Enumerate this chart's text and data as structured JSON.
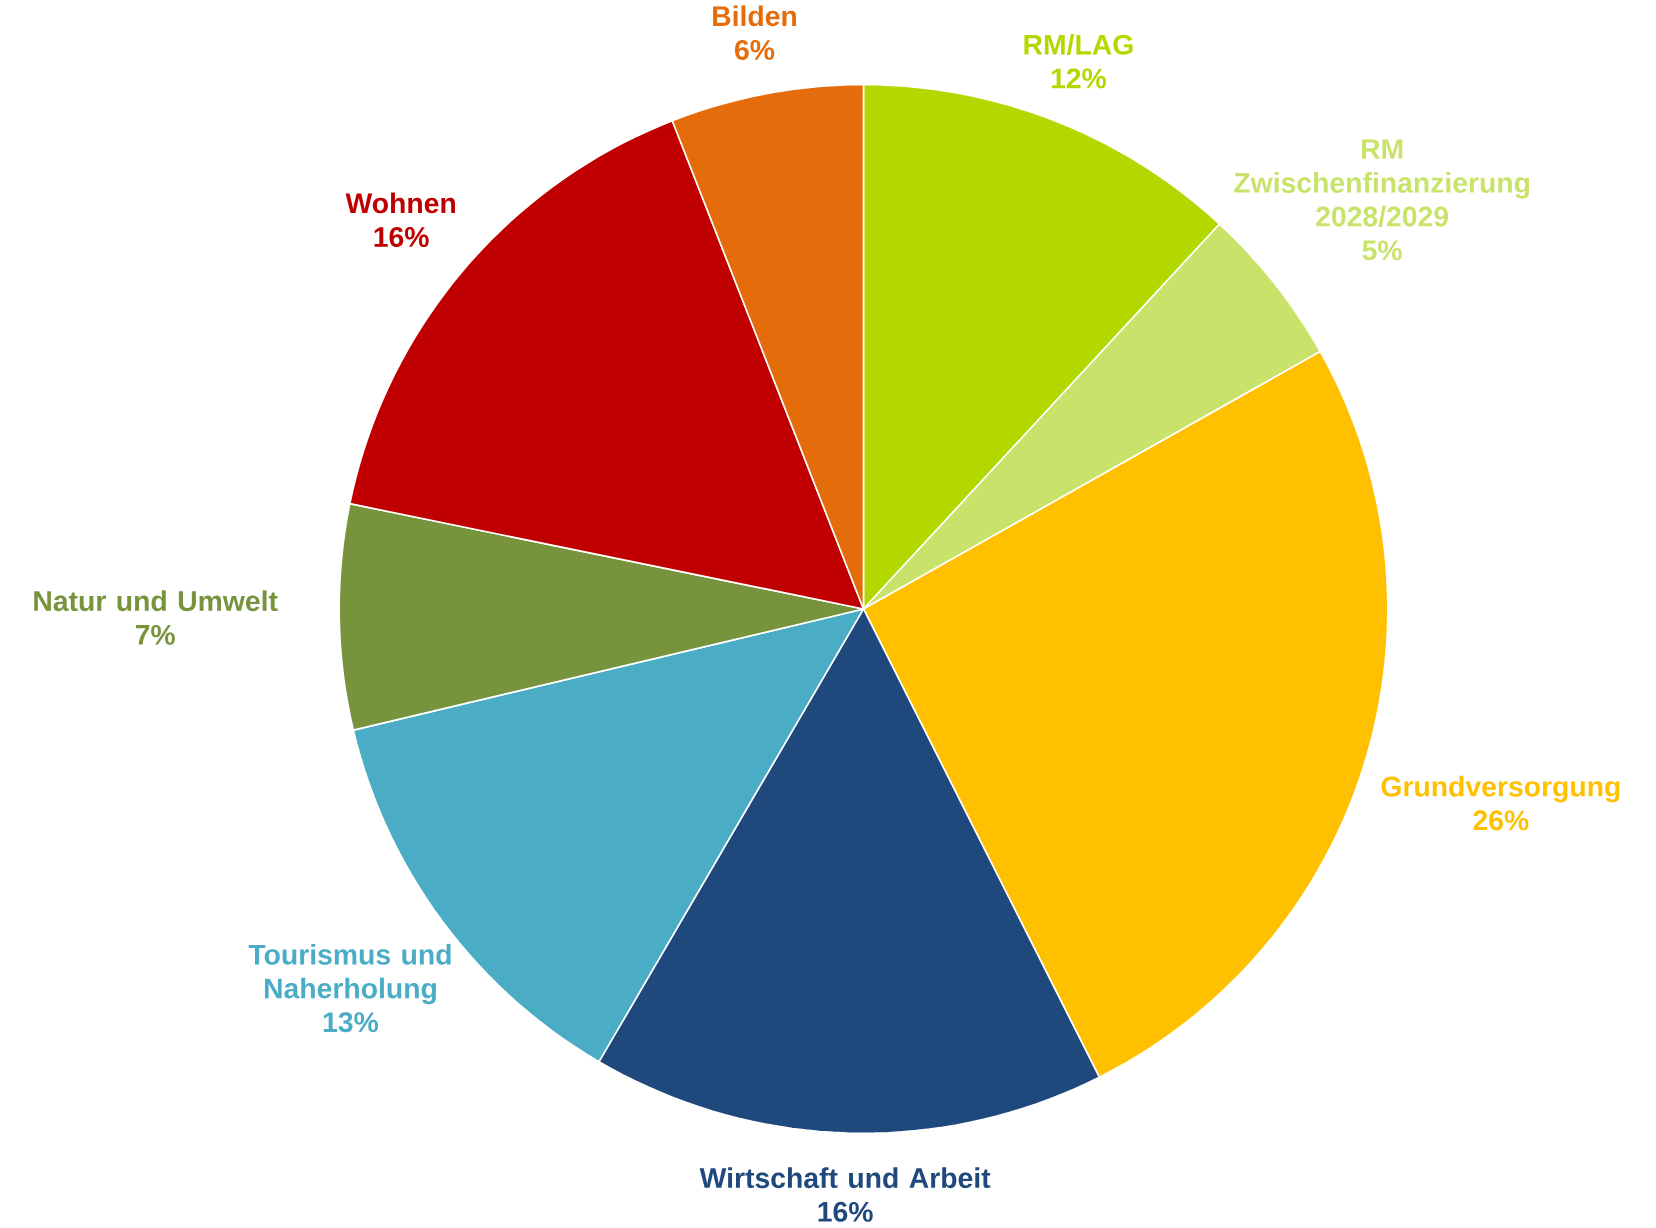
{
  "chart_data": {
    "type": "pie",
    "categories": [
      "RM/LAG",
      "RM Zwischenfinanzierung 2028/2029",
      "Grundversorgung",
      "Wirtschaft und Arbeit",
      "Tourismus und Naherholung",
      "Natur und Umwelt",
      "Wohnen",
      "Bilden"
    ],
    "values": [
      12,
      5,
      26,
      16,
      13,
      7,
      16,
      6
    ],
    "value_labels": [
      "12%",
      "5%",
      "26%",
      "16%",
      "13%",
      "7%",
      "16%",
      "6%"
    ],
    "colors": [
      "#b2d800",
      "#c9e36a",
      "#ffc000",
      "#1f497d",
      "#4bacc6",
      "#77933c",
      "#c00000",
      "#e46c0a"
    ]
  }
}
